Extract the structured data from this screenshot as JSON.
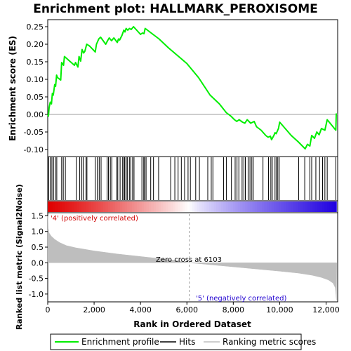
{
  "chart_data": {
    "title": "Enrichment plot: HALLMARK_PEROXISOME",
    "type": "line",
    "xlabel": "Rank in Ordered Dataset",
    "x_ticks": [
      0,
      2000,
      4000,
      6000,
      8000,
      10000,
      12000
    ],
    "xlim": [
      0,
      12500
    ],
    "es_panel": {
      "ylabel": "Enrichment score (ES)",
      "ylim": [
        -0.12,
        0.27
      ],
      "y_ticks": [
        -0.1,
        -0.05,
        0.0,
        0.05,
        0.1,
        0.15,
        0.2,
        0.25
      ],
      "y_tick_labels": [
        "-0.10",
        "-0.05",
        "0.00",
        "0.05",
        "0.10",
        "0.15",
        "0.20",
        "0.25"
      ],
      "series": [
        {
          "name": "Enrichment profile",
          "color": "#00ee00",
          "points": [
            [
              0,
              0.0
            ],
            [
              30,
              -0.005
            ],
            [
              60,
              0.02
            ],
            [
              110,
              0.035
            ],
            [
              160,
              0.03
            ],
            [
              200,
              0.06
            ],
            [
              240,
              0.055
            ],
            [
              300,
              0.085
            ],
            [
              340,
              0.08
            ],
            [
              380,
              0.112
            ],
            [
              420,
              0.105
            ],
            [
              560,
              0.098
            ],
            [
              600,
              0.148
            ],
            [
              680,
              0.14
            ],
            [
              720,
              0.165
            ],
            [
              1150,
              0.14
            ],
            [
              1200,
              0.148
            ],
            [
              1300,
              0.135
            ],
            [
              1350,
              0.165
            ],
            [
              1420,
              0.152
            ],
            [
              1480,
              0.185
            ],
            [
              1550,
              0.175
            ],
            [
              1600,
              0.18
            ],
            [
              1680,
              0.2
            ],
            [
              1800,
              0.195
            ],
            [
              2050,
              0.178
            ],
            [
              2100,
              0.2
            ],
            [
              2200,
              0.215
            ],
            [
              2280,
              0.22
            ],
            [
              2500,
              0.2
            ],
            [
              2580,
              0.21
            ],
            [
              2650,
              0.218
            ],
            [
              2750,
              0.21
            ],
            [
              2850,
              0.218
            ],
            [
              3000,
              0.205
            ],
            [
              3050,
              0.215
            ],
            [
              3100,
              0.212
            ],
            [
              3200,
              0.225
            ],
            [
              3280,
              0.24
            ],
            [
              3330,
              0.235
            ],
            [
              3380,
              0.245
            ],
            [
              3450,
              0.24
            ],
            [
              3520,
              0.245
            ],
            [
              3600,
              0.242
            ],
            [
              3700,
              0.25
            ],
            [
              4000,
              0.228
            ],
            [
              4080,
              0.232
            ],
            [
              4150,
              0.23
            ],
            [
              4200,
              0.245
            ],
            [
              4800,
              0.215
            ],
            [
              5200,
              0.19
            ],
            [
              6000,
              0.145
            ],
            [
              6500,
              0.105
            ],
            [
              7000,
              0.055
            ],
            [
              7400,
              0.03
            ],
            [
              7700,
              0.005
            ],
            [
              7900,
              -0.005
            ],
            [
              8050,
              -0.015
            ],
            [
              8150,
              -0.02
            ],
            [
              8250,
              -0.015
            ],
            [
              8400,
              -0.022
            ],
            [
              8500,
              -0.025
            ],
            [
              8600,
              -0.015
            ],
            [
              8750,
              -0.025
            ],
            [
              8900,
              -0.02
            ],
            [
              9000,
              -0.035
            ],
            [
              9200,
              -0.045
            ],
            [
              9400,
              -0.06
            ],
            [
              9500,
              -0.065
            ],
            [
              9600,
              -0.062
            ],
            [
              9650,
              -0.072
            ],
            [
              9750,
              -0.06
            ],
            [
              9800,
              -0.052
            ],
            [
              9850,
              -0.055
            ],
            [
              9950,
              -0.04
            ],
            [
              10000,
              -0.022
            ],
            [
              10500,
              -0.06
            ],
            [
              10800,
              -0.078
            ],
            [
              11100,
              -0.098
            ],
            [
              11200,
              -0.085
            ],
            [
              11300,
              -0.09
            ],
            [
              11380,
              -0.06
            ],
            [
              11500,
              -0.068
            ],
            [
              11600,
              -0.05
            ],
            [
              11700,
              -0.058
            ],
            [
              11800,
              -0.04
            ],
            [
              11950,
              -0.045
            ],
            [
              12050,
              -0.015
            ],
            [
              12420,
              -0.045
            ],
            [
              12440,
              0.003
            ]
          ]
        }
      ],
      "hits": [
        40,
        110,
        180,
        250,
        330,
        390,
        600,
        670,
        760,
        1230,
        1380,
        1470,
        1530,
        1650,
        1690,
        2050,
        2140,
        2220,
        2300,
        2560,
        2620,
        2700,
        2760,
        2980,
        3020,
        3120,
        3230,
        3290,
        3320,
        3380,
        3430,
        3520,
        3580,
        3660,
        3720,
        4060,
        4140,
        4180,
        4240,
        4440,
        4560,
        4780,
        5300,
        5480,
        5620,
        5760,
        5900,
        6050,
        6150,
        6380,
        6540,
        6900,
        7050,
        7120,
        7580,
        7700,
        7920,
        8080,
        8160,
        8240,
        8380,
        8460,
        8520,
        8640,
        8720,
        8800,
        8860,
        9280,
        9520,
        9620,
        9680,
        9800,
        9860,
        9920,
        9980,
        10820,
        11080,
        11300,
        11380,
        11560,
        11720,
        11850,
        11950,
        12050,
        12420
      ]
    },
    "colorbar": {
      "positive_label": "'4' (positively correlated)",
      "negative_label": "'5' (negatively correlated)",
      "positive_color": "#e00000",
      "negative_color": "#2000e0"
    },
    "metric_panel": {
      "ylabel": "Ranked list metric (Signal2Noise)",
      "ylim": [
        -1.25,
        1.6
      ],
      "y_ticks": [
        -1.0,
        -0.5,
        0.0,
        0.5,
        1.0,
        1.5
      ],
      "y_tick_labels": [
        "-1.0",
        "-0.5",
        "0.0",
        "0.5",
        "1.0",
        "1.5"
      ],
      "fill_color": "#bebebe",
      "profile": [
        [
          0,
          1.5
        ],
        [
          20,
          1.1
        ],
        [
          60,
          0.95
        ],
        [
          150,
          0.85
        ],
        [
          300,
          0.75
        ],
        [
          500,
          0.65
        ],
        [
          800,
          0.55
        ],
        [
          1200,
          0.48
        ],
        [
          2000,
          0.38
        ],
        [
          3000,
          0.28
        ],
        [
          4000,
          0.2
        ],
        [
          5000,
          0.12
        ],
        [
          5600,
          0.07
        ],
        [
          6103,
          0.0
        ],
        [
          7000,
          -0.06
        ],
        [
          8000,
          -0.13
        ],
        [
          9000,
          -0.2
        ],
        [
          10000,
          -0.27
        ],
        [
          10800,
          -0.33
        ],
        [
          11400,
          -0.4
        ],
        [
          11800,
          -0.47
        ],
        [
          12100,
          -0.55
        ],
        [
          12300,
          -0.65
        ],
        [
          12400,
          -0.8
        ],
        [
          12450,
          -1.2
        ],
        [
          12460,
          0.0
        ]
      ],
      "zero_cross_label": "Zero cross at 6103",
      "zero_cross_rank": 6103
    },
    "legend": {
      "placement": "bottom",
      "items": [
        {
          "label": "Enrichment profile",
          "color": "#00ee00"
        },
        {
          "label": "Hits",
          "color": "#000000"
        },
        {
          "label": "Ranking metric scores",
          "color": "#bebebe"
        }
      ]
    }
  }
}
